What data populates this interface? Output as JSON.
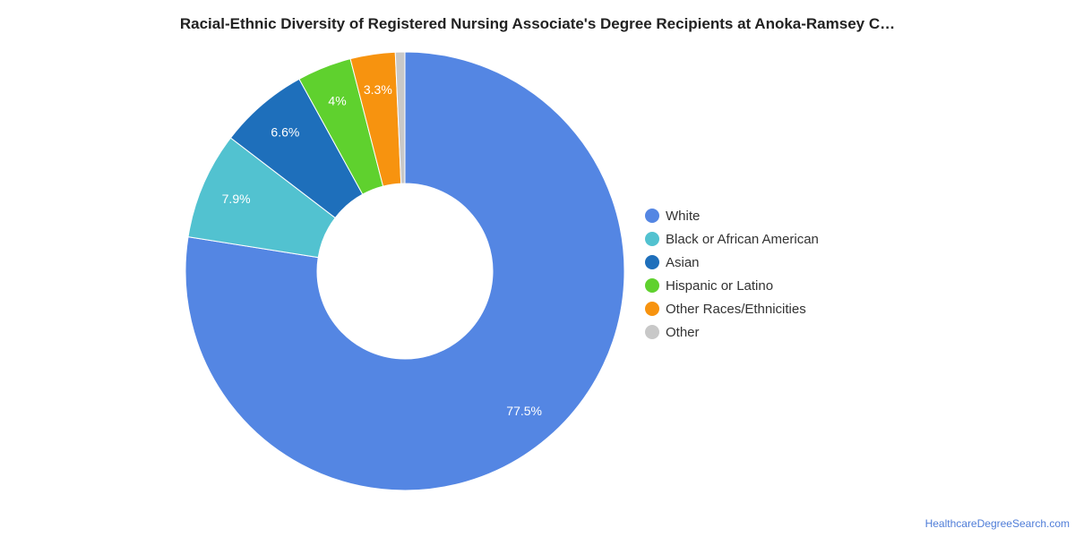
{
  "chart_data": {
    "type": "pie",
    "title": "Racial-Ethnic Diversity of Registered Nursing Associate's Degree Recipients at Anoka-Ramsey C…",
    "legend_position": "right",
    "slices": [
      {
        "label": "White",
        "value": 77.5,
        "value_label": "77.5%",
        "color": "#5486e3"
      },
      {
        "label": "Black or African American",
        "value": 7.9,
        "value_label": "7.9%",
        "color": "#52c2d0"
      },
      {
        "label": "Asian",
        "value": 6.6,
        "value_label": "6.6%",
        "color": "#1e6fbb"
      },
      {
        "label": "Hispanic or Latino",
        "value": 4.0,
        "value_label": "4%",
        "color": "#5fd12e"
      },
      {
        "label": "Other Races/Ethnicities",
        "value": 3.3,
        "value_label": "3.3%",
        "color": "#f7930f"
      },
      {
        "label": "Other",
        "value": 0.7,
        "value_label": "",
        "color": "#c8c8c8"
      }
    ]
  },
  "footer": {
    "source": "HealthcareDegreeSearch.com"
  }
}
